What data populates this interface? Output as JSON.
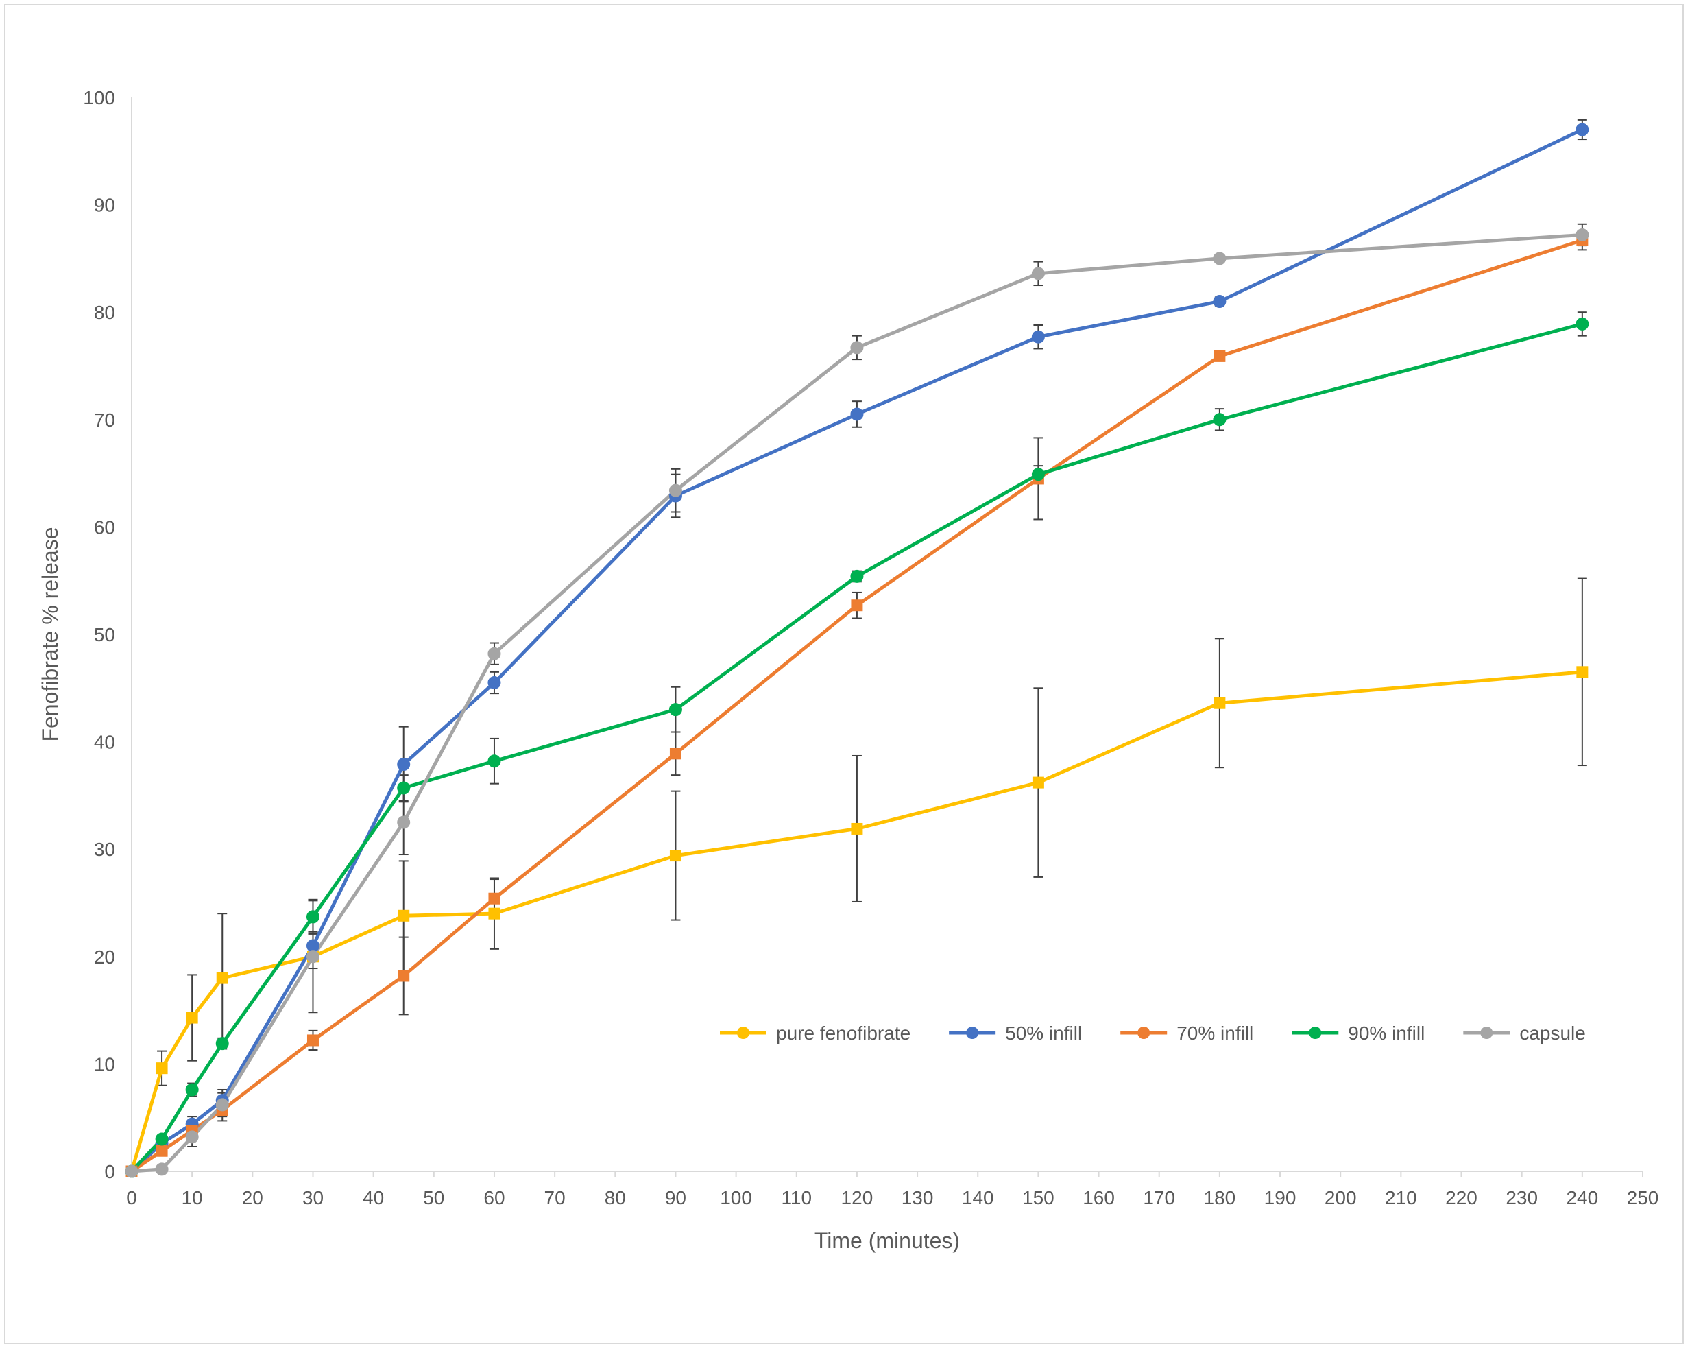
{
  "chart_data": {
    "type": "line",
    "xlabel": "Time (minutes)",
    "ylabel": "Fenofibrate % release",
    "xlim": [
      0,
      250
    ],
    "ylim": [
      0,
      100
    ],
    "x_ticks": [
      0,
      10,
      20,
      30,
      40,
      50,
      60,
      70,
      80,
      90,
      100,
      110,
      120,
      130,
      140,
      150,
      160,
      170,
      180,
      190,
      200,
      210,
      220,
      230,
      240,
      250
    ],
    "y_ticks": [
      0,
      10,
      20,
      30,
      40,
      50,
      60,
      70,
      80,
      90,
      100
    ],
    "grid": false,
    "legend_position": "bottom-right",
    "x": [
      0,
      5,
      10,
      15,
      30,
      45,
      60,
      90,
      120,
      150,
      180,
      240
    ],
    "series": [
      {
        "name": "pure fenofibrate",
        "color": "#FFC000",
        "marker": "square",
        "values": [
          0,
          9.6,
          14.3,
          18.0,
          20.0,
          23.8,
          24.0,
          29.4,
          31.9,
          36.2,
          43.6,
          46.5
        ],
        "error": [
          0,
          1.6,
          4.0,
          6.0,
          5.2,
          5.1,
          3.3,
          6.0,
          6.8,
          8.8,
          6.0,
          8.7
        ]
      },
      {
        "name": "50% infill",
        "color": "#4472C4",
        "marker": "circle",
        "values": [
          0,
          2.6,
          4.4,
          6.6,
          21.0,
          37.9,
          45.5,
          62.9,
          70.5,
          77.7,
          81.0,
          97.0
        ],
        "error": [
          0,
          0.4,
          0.7,
          1.0,
          1.3,
          3.5,
          1.0,
          2.0,
          1.2,
          1.1,
          0.4,
          0.9
        ]
      },
      {
        "name": "70% infill",
        "color": "#ED7D31",
        "marker": "square",
        "values": [
          0,
          1.9,
          3.8,
          5.7,
          12.2,
          18.2,
          25.4,
          38.9,
          52.7,
          64.5,
          75.9,
          86.7
        ],
        "error": [
          0,
          0.4,
          0.6,
          1.0,
          0.9,
          3.6,
          1.8,
          2.0,
          1.2,
          3.8,
          0.4,
          0.9
        ]
      },
      {
        "name": "90% infill",
        "color": "#00B050",
        "marker": "circle",
        "values": [
          0,
          3.0,
          7.6,
          11.9,
          23.7,
          35.7,
          38.2,
          43.0,
          55.4,
          64.9,
          70.0,
          78.9
        ],
        "error": [
          0,
          0.3,
          0.6,
          0.5,
          1.6,
          1.2,
          2.1,
          2.1,
          0.5,
          0.8,
          1.0,
          1.1
        ]
      },
      {
        "name": "capsule",
        "color": "#A5A5A5",
        "marker": "circle",
        "values": [
          0,
          0.2,
          3.2,
          6.2,
          20.0,
          32.5,
          48.2,
          63.4,
          76.7,
          83.6,
          85.0,
          87.2
        ],
        "error": [
          0,
          0.2,
          0.9,
          1.1,
          1.1,
          3.0,
          1.0,
          2.0,
          1.1,
          1.1,
          0.3,
          1.0
        ]
      }
    ]
  }
}
